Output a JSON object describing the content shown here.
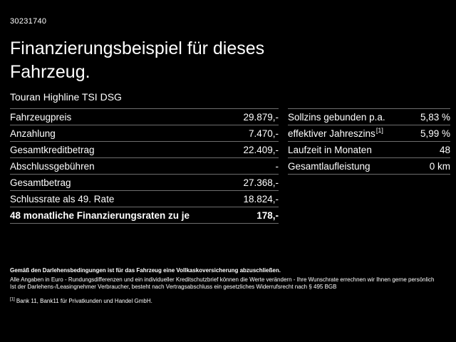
{
  "header": {
    "vehicle_id": "30231740",
    "title_line1": "Finanzierungsbeispiel für dieses",
    "title_line2": "Fahrzeug.",
    "subtitle": "Touran Highline TSI DSG"
  },
  "left_table": {
    "rows": [
      {
        "label": "Fahrzeugpreis",
        "value": "29.879,-"
      },
      {
        "label": "Anzahlung",
        "value": "7.470,-"
      },
      {
        "label": "Gesamtkreditbetrag",
        "value": "22.409,-"
      },
      {
        "label": "Abschlussgebühren",
        "value": "-"
      },
      {
        "label": "Gesamtbetrag",
        "value": "27.368,-"
      },
      {
        "label": "Schlussrate als 49. Rate",
        "value": "18.824,-"
      },
      {
        "label": "48 monatliche Finanzierungsraten zu je",
        "value": "178,-"
      }
    ]
  },
  "right_table": {
    "rows": [
      {
        "label": "Sollzins gebunden p.a.",
        "value": "5,83 %"
      },
      {
        "label": "effektiver Jahreszins",
        "sup": "[1]",
        "value": "5,99 %"
      },
      {
        "label": "Laufzeit in Monaten",
        "value": "48"
      },
      {
        "label": "Gesamtlaufleistung",
        "value": "0 km"
      }
    ]
  },
  "footer": {
    "line1": "Gemäß den Darlehensbedingungen ist für das Fahrzeug eine Vollkaskoversicherung abzuschließen.",
    "line2": "Alle Angaben in Euro - Rundungsdifferenzen und ein individueller Kreditschutzbrief können die Werte verändern - Ihre Wunschrate errechnen wir Ihnen gerne persönlich",
    "line3": "Ist der Darlehens-/Leasingnehmer Verbraucher, besteht nach Vertragsabschluss ein gesetzliches Widerrufsrecht nach § 495 BGB",
    "footnote_ref": "[1]",
    "footnote_text": "Bank 11, Bank11 für Privatkunden und Handel GmbH."
  },
  "colors": {
    "background": "#000000",
    "text": "#ffffff",
    "divider": "#6e6e6e"
  }
}
